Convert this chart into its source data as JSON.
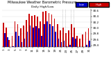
{
  "title": "Milwaukee Weather Barometric Pressure",
  "subtitle": "Daily High/Low",
  "ylim": [
    29.35,
    30.65
  ],
  "yticks": [
    29.4,
    29.6,
    29.8,
    30.0,
    30.2,
    30.4,
    30.6
  ],
  "bar_width": 0.42,
  "background_color": "#ffffff",
  "high_color": "#cc0000",
  "low_color": "#0000cc",
  "legend_high_color": "#cc0000",
  "legend_low_color": "#0000cc",
  "days": [
    "1",
    "2",
    "3",
    "4",
    "5",
    "6",
    "7",
    "8",
    "9",
    "10",
    "11",
    "12",
    "13",
    "14",
    "15",
    "16",
    "17",
    "18",
    "19",
    "20",
    "21",
    "22",
    "23",
    "24",
    "25",
    "26",
    "27",
    "28",
    "29",
    "30",
    "31"
  ],
  "highs": [
    30.18,
    30.02,
    29.58,
    29.72,
    30.22,
    30.12,
    29.98,
    30.08,
    30.28,
    30.48,
    30.42,
    30.44,
    30.38,
    30.22,
    30.55,
    30.58,
    30.52,
    30.46,
    30.32,
    30.12,
    29.92,
    30.02,
    29.82,
    29.92,
    30.12,
    30.02,
    29.72,
    29.62,
    29.78,
    29.88,
    29.98
  ],
  "lows": [
    29.82,
    29.68,
    29.22,
    29.38,
    29.88,
    29.72,
    29.52,
    29.62,
    29.88,
    30.08,
    30.02,
    30.05,
    29.98,
    29.72,
    30.12,
    30.22,
    30.12,
    30.05,
    29.88,
    29.62,
    29.52,
    29.55,
    29.38,
    29.42,
    29.68,
    29.62,
    29.28,
    29.12,
    29.32,
    29.42,
    29.55
  ],
  "dashed_lines": [
    20.5,
    21.5,
    23.5,
    24.5
  ],
  "title_fontsize": 3.5,
  "tick_fontsize": 3.0,
  "legend_fontsize": 3.0
}
